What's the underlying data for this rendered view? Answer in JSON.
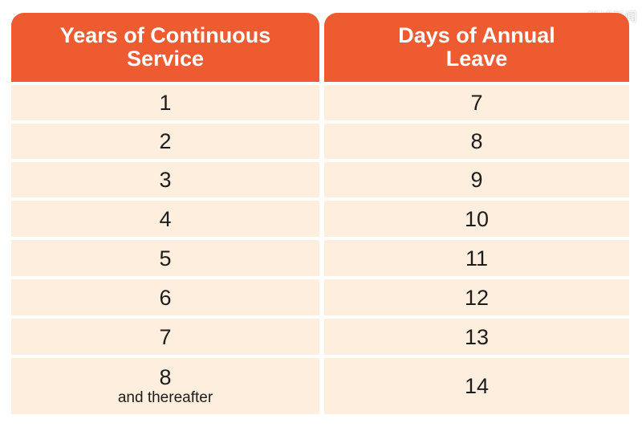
{
  "watermark": "狮城新闻",
  "table": {
    "header": {
      "col1": "Years of Continuous Service",
      "col2": "Days of Annual Leave"
    },
    "rows": [
      {
        "years": "1",
        "years_note": "",
        "days": "7"
      },
      {
        "years": "2",
        "years_note": "",
        "days": "8"
      },
      {
        "years": "3",
        "years_note": "",
        "days": "9"
      },
      {
        "years": "4",
        "years_note": "",
        "days": "10"
      },
      {
        "years": "5",
        "years_note": "",
        "days": "11"
      },
      {
        "years": "6",
        "years_note": "",
        "days": "12"
      },
      {
        "years": "7",
        "years_note": "",
        "days": "13"
      },
      {
        "years": "8",
        "years_note": "and thereafter",
        "days": "14"
      }
    ]
  },
  "colors": {
    "header_bg": "#ee5b31",
    "row_bg": "#fdeedd",
    "divider": "#ffffff"
  }
}
